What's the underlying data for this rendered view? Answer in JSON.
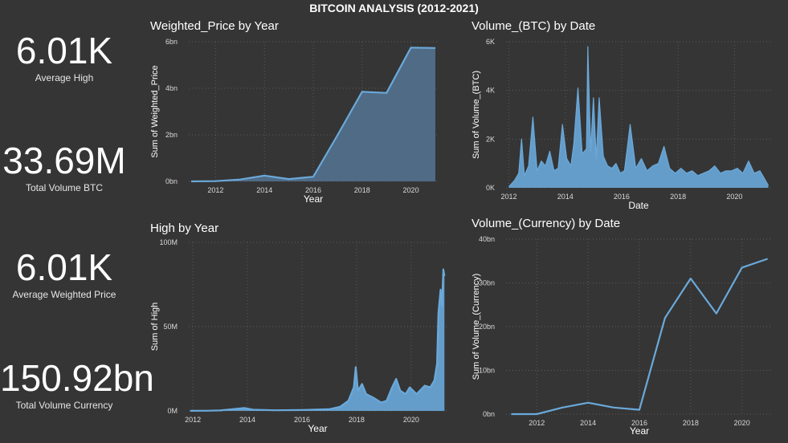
{
  "header": {
    "title": "BITCOIN ANALYSIS (2012-2021)"
  },
  "kpis": [
    {
      "value": "6.01K",
      "label": "Average High"
    },
    {
      "value": "33.69M",
      "label": "Total Volume BTC"
    },
    {
      "value": "6.01K",
      "label": "Average Weighted Price"
    },
    {
      "value": "150.92bn",
      "label": "Total Volume Currency"
    }
  ],
  "colors": {
    "background": "#353535",
    "series": "#6aa9da",
    "area_fill": "#4f6b86"
  },
  "chart_data": [
    {
      "id": "weighted_price",
      "type": "area",
      "title": "Weighted_Price by Year",
      "xlabel": "Year",
      "ylabel": "Sum of Weighted_Price",
      "x": [
        2011,
        2012,
        2013,
        2014,
        2015,
        2016,
        2017,
        2018,
        2019,
        2020,
        2021
      ],
      "values": [
        0.0,
        0.01,
        0.08,
        0.25,
        0.1,
        0.2,
        2.0,
        3.85,
        3.8,
        5.75,
        5.73
      ],
      "xlim": [
        2010.9,
        2021.1
      ],
      "ylim": [
        0,
        6
      ],
      "x_ticks": [
        2012,
        2014,
        2016,
        2018,
        2020
      ],
      "x_tick_labels": [
        "2012",
        "2014",
        "2016",
        "2018",
        "2020"
      ],
      "y_ticks": [
        0,
        2,
        4,
        6
      ],
      "y_tick_labels": [
        "0bn",
        "2bn",
        "4bn",
        "6bn"
      ],
      "grid": true
    },
    {
      "id": "volume_btc",
      "type": "area",
      "title": "Volume_(BTC) by Date",
      "xlabel": "Date",
      "ylabel": "Sum of Volume_(BTC)",
      "x": [
        2012.0,
        2012.2,
        2012.35,
        2012.45,
        2012.55,
        2012.7,
        2012.85,
        2013.0,
        2013.15,
        2013.3,
        2013.45,
        2013.6,
        2013.75,
        2013.9,
        2014.05,
        2014.2,
        2014.3,
        2014.45,
        2014.6,
        2014.75,
        2014.8,
        2014.9,
        2015.0,
        2015.1,
        2015.2,
        2015.35,
        2015.5,
        2015.65,
        2015.8,
        2015.95,
        2016.1,
        2016.3,
        2016.5,
        2016.7,
        2016.9,
        2017.1,
        2017.3,
        2017.5,
        2017.7,
        2017.9,
        2018.1,
        2018.3,
        2018.5,
        2018.7,
        2018.9,
        2019.1,
        2019.3,
        2019.5,
        2019.7,
        2019.9,
        2020.1,
        2020.3,
        2020.5,
        2020.7,
        2020.9,
        2021.0,
        2021.1,
        2021.2
      ],
      "values": [
        50,
        300,
        600,
        2000,
        500,
        900,
        2900,
        700,
        1100,
        900,
        1500,
        700,
        800,
        2600,
        1200,
        900,
        1800,
        4100,
        1400,
        1600,
        5800,
        1500,
        3700,
        1200,
        3700,
        1300,
        900,
        800,
        1000,
        600,
        700,
        2600,
        800,
        1200,
        700,
        900,
        1000,
        1700,
        800,
        600,
        800,
        600,
        700,
        500,
        600,
        700,
        900,
        600,
        700,
        700,
        800,
        600,
        1100,
        600,
        700,
        500,
        300,
        100
      ],
      "xlim": [
        2011.9,
        2021.3
      ],
      "ylim": [
        0,
        6000
      ],
      "x_ticks": [
        2012,
        2014,
        2016,
        2018,
        2020
      ],
      "x_tick_labels": [
        "2012",
        "2014",
        "2016",
        "2018",
        "2020"
      ],
      "y_ticks": [
        0,
        2000,
        4000,
        6000
      ],
      "y_tick_labels": [
        "0K",
        "2K",
        "4K",
        "6K"
      ],
      "grid": true
    },
    {
      "id": "high",
      "type": "area",
      "title": "High by Year",
      "xlabel": "Year",
      "ylabel": "Sum of High",
      "x": [
        2011.9,
        2012.5,
        2013.0,
        2013.9,
        2014.2,
        2015.0,
        2016.0,
        2017.0,
        2017.4,
        2017.7,
        2017.9,
        2017.97,
        2018.05,
        2018.2,
        2018.35,
        2018.6,
        2018.9,
        2019.1,
        2019.3,
        2019.45,
        2019.6,
        2019.8,
        2019.95,
        2020.2,
        2020.5,
        2020.7,
        2020.85,
        2020.95,
        2021.0,
        2021.08,
        2021.13,
        2021.18,
        2021.22
      ],
      "values": [
        0.05,
        0.1,
        0.3,
        1.7,
        0.7,
        0.4,
        0.5,
        1.0,
        2.5,
        6.0,
        14.0,
        26.0,
        12.0,
        16.0,
        10.0,
        8.0,
        5.0,
        6.0,
        14.0,
        19.0,
        12.0,
        10.0,
        14.0,
        10.0,
        15.0,
        14.0,
        18.0,
        28.0,
        58.0,
        72.0,
        62.0,
        84.0,
        80.0
      ],
      "xlim": [
        2011.85,
        2021.3
      ],
      "ylim": [
        0,
        100
      ],
      "x_ticks": [
        2012,
        2014,
        2016,
        2018,
        2020
      ],
      "x_tick_labels": [
        "2012",
        "2014",
        "2016",
        "2018",
        "2020"
      ],
      "y_ticks": [
        0,
        50,
        100
      ],
      "y_tick_labels": [
        "0M",
        "50M",
        "100M"
      ],
      "grid": true
    },
    {
      "id": "volume_currency",
      "type": "line",
      "title": "Volume_(Currency) by Date",
      "xlabel": "Year",
      "ylabel": "Sum of Volume_(Currency)",
      "x": [
        2011,
        2012,
        2013,
        2014,
        2015,
        2016,
        2017,
        2018,
        2019,
        2020,
        2021
      ],
      "values": [
        0.0,
        0.0,
        1.5,
        2.6,
        1.5,
        1.0,
        22.0,
        31.0,
        23.0,
        33.5,
        35.5
      ],
      "xlim": [
        2010.8,
        2021.2
      ],
      "ylim": [
        0,
        40
      ],
      "x_ticks": [
        2012,
        2014,
        2016,
        2018,
        2020
      ],
      "x_tick_labels": [
        "2012",
        "2014",
        "2016",
        "2018",
        "2020"
      ],
      "y_ticks": [
        0,
        10,
        20,
        30,
        40
      ],
      "y_tick_labels": [
        "0bn",
        "10bn",
        "20bn",
        "30bn",
        "40bn"
      ],
      "grid": true
    }
  ]
}
